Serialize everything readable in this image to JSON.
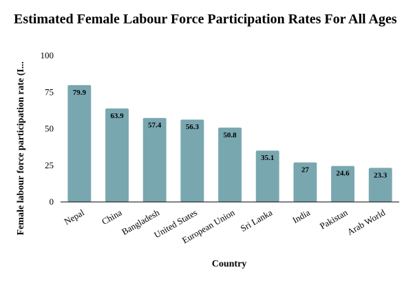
{
  "chart_data": {
    "type": "bar",
    "title": "Estimated Female Labour Force Participation Rates For All Ages",
    "xlabel": "Country",
    "ylabel": "Female labour force participation rate (I...",
    "categories": [
      "Nepal",
      "China",
      "Bangladesh",
      "United States",
      "European Union",
      "Sri Lanka",
      "India",
      "Pakistan",
      "Arab World"
    ],
    "values": [
      79.9,
      63.9,
      57.4,
      56.3,
      50.8,
      35.1,
      27,
      24.6,
      23.3
    ],
    "value_labels": [
      "79.9",
      "63.9",
      "57.4",
      "56.3",
      "50.8",
      "35.1",
      "27",
      "24.6",
      "23.3"
    ],
    "ylim": [
      0,
      100
    ],
    "yticks": [
      "0",
      "25",
      "50",
      "75",
      "100"
    ],
    "ytick_values": [
      0,
      25,
      50,
      75,
      100
    ],
    "grid": false,
    "bar_color": "#79a7b0"
  }
}
